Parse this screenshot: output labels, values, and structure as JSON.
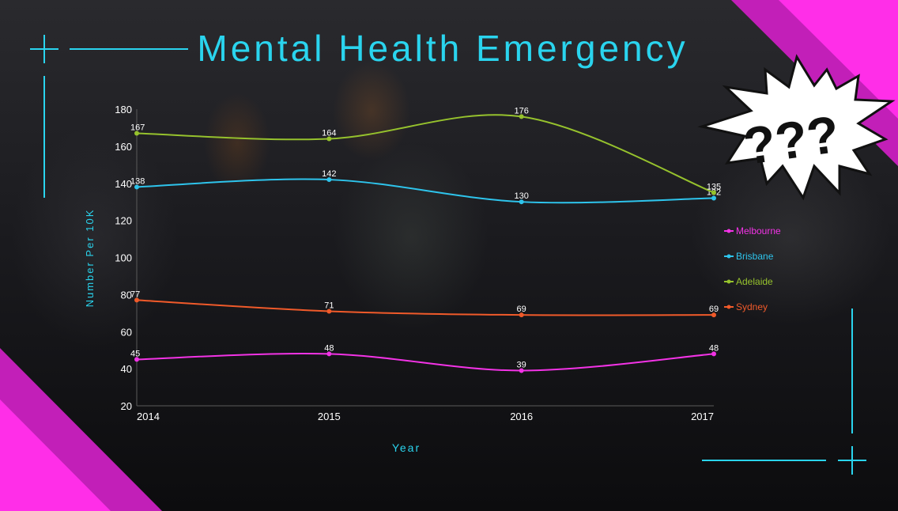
{
  "title": "Mental Health Emergency",
  "badge_text": "???",
  "colors": {
    "accent": "#2ad4ee",
    "magenta": "#ff2ee8",
    "Melbourne": "#f333e6",
    "Brisbane": "#2ec4ec",
    "Adelaide": "#96c22d",
    "Sydney": "#f05a2a"
  },
  "chart_data": {
    "type": "line",
    "xlabel": "Year",
    "ylabel": "Number Per 10K",
    "categories": [
      "2014",
      "2015",
      "2016",
      "2017"
    ],
    "ylim": [
      20,
      180
    ],
    "yticks": [
      20,
      40,
      60,
      80,
      100,
      120,
      140,
      160,
      180
    ],
    "legend_position": "right",
    "grid": false,
    "series": [
      {
        "name": "Melbourne",
        "values": [
          45,
          48,
          39,
          48
        ]
      },
      {
        "name": "Brisbane",
        "values": [
          138,
          142,
          130,
          132
        ]
      },
      {
        "name": "Adelaide",
        "values": [
          167,
          164,
          176,
          135
        ]
      },
      {
        "name": "Sydney",
        "values": [
          77,
          71,
          69,
          69
        ]
      }
    ]
  }
}
